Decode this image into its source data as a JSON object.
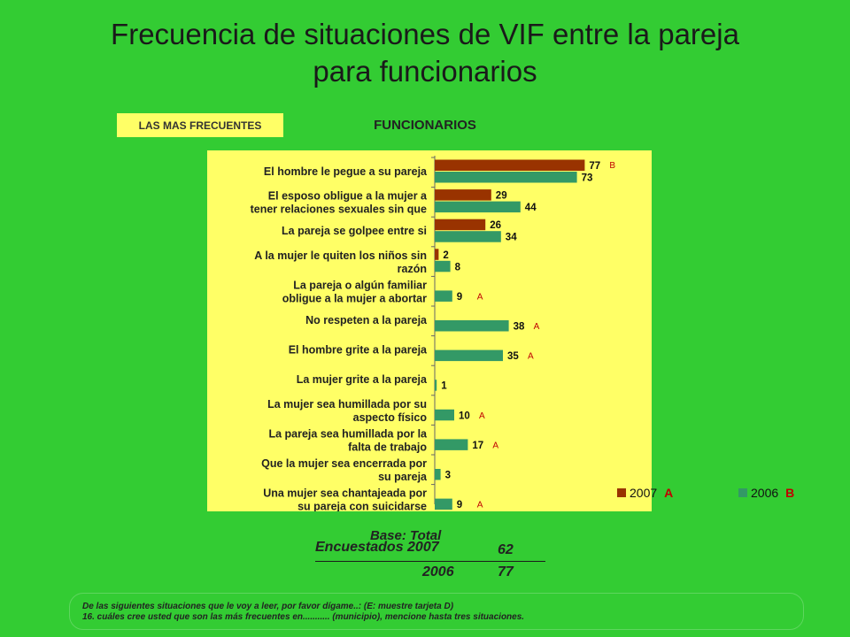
{
  "title_line1": "Frecuencia de situaciones de VIF entre la pareja",
  "title_line2": "para funcionarios",
  "badge": "LAS MAS FRECUENTES",
  "subtitle": "FUNCIONARIOS",
  "chart_data": {
    "type": "bar",
    "orientation": "horizontal",
    "categories": [
      [
        "El hombre le pegue a su pareja"
      ],
      [
        "El esposo obligue a la mujer a",
        "tener relaciones sexuales sin que"
      ],
      [
        "La pareja se golpee entre si"
      ],
      [
        "A la mujer le quiten los niños sin",
        "razón"
      ],
      [
        "La pareja o algún familiar",
        "obligue a la mujer a abortar"
      ],
      [
        "No respeten a la pareja"
      ],
      [
        "El hombre grite a la pareja"
      ],
      [
        "La mujer grite a la pareja"
      ],
      [
        "La mujer sea humillada por su",
        "aspecto físico"
      ],
      [
        "La pareja sea humillada por la",
        "falta de trabajo"
      ],
      [
        "Que la mujer sea encerrada por",
        "su pareja"
      ],
      [
        "Una mujer sea chantajeada por",
        "su pareja con suicidarse"
      ]
    ],
    "series": [
      {
        "name": "2007",
        "color": "#993300",
        "values": [
          77,
          29,
          26,
          2,
          null,
          null,
          null,
          null,
          null,
          null,
          null,
          null
        ]
      },
      {
        "name": "2006",
        "color": "#339966",
        "values": [
          73,
          44,
          34,
          8,
          9,
          38,
          35,
          1,
          10,
          17,
          3,
          9
        ]
      }
    ],
    "significance": [
      {
        "category": 0,
        "letter": "B"
      },
      {
        "category": 4,
        "letter": "A"
      },
      {
        "category": 5,
        "letter": "A"
      },
      {
        "category": 6,
        "letter": "A"
      },
      {
        "category": 8,
        "letter": "A"
      },
      {
        "category": 9,
        "letter": "A"
      },
      {
        "category": 11,
        "letter": "A"
      }
    ],
    "legend": [
      {
        "label": "2007",
        "letter": "A",
        "color": "#993300"
      },
      {
        "label": "2006",
        "letter": "B",
        "color": "#339966"
      }
    ],
    "letter_color": "#c00000",
    "xlim": [
      0,
      100
    ],
    "legend_position": "bottom"
  },
  "base": {
    "label": "Base: Total",
    "encuestados_label": "Encuestados 2007",
    "encuestados_2007": "62",
    "year_2006": "2006",
    "encuestados_2006": "77"
  },
  "footnote": {
    "line1": "De las siguientes situaciones que le voy a leer, por favor dígame..: (E: muestre tarjeta D)",
    "line2": "16. cuáles cree usted que son las más frecuentes en........... (municipio), mencione hasta tres situaciones."
  }
}
